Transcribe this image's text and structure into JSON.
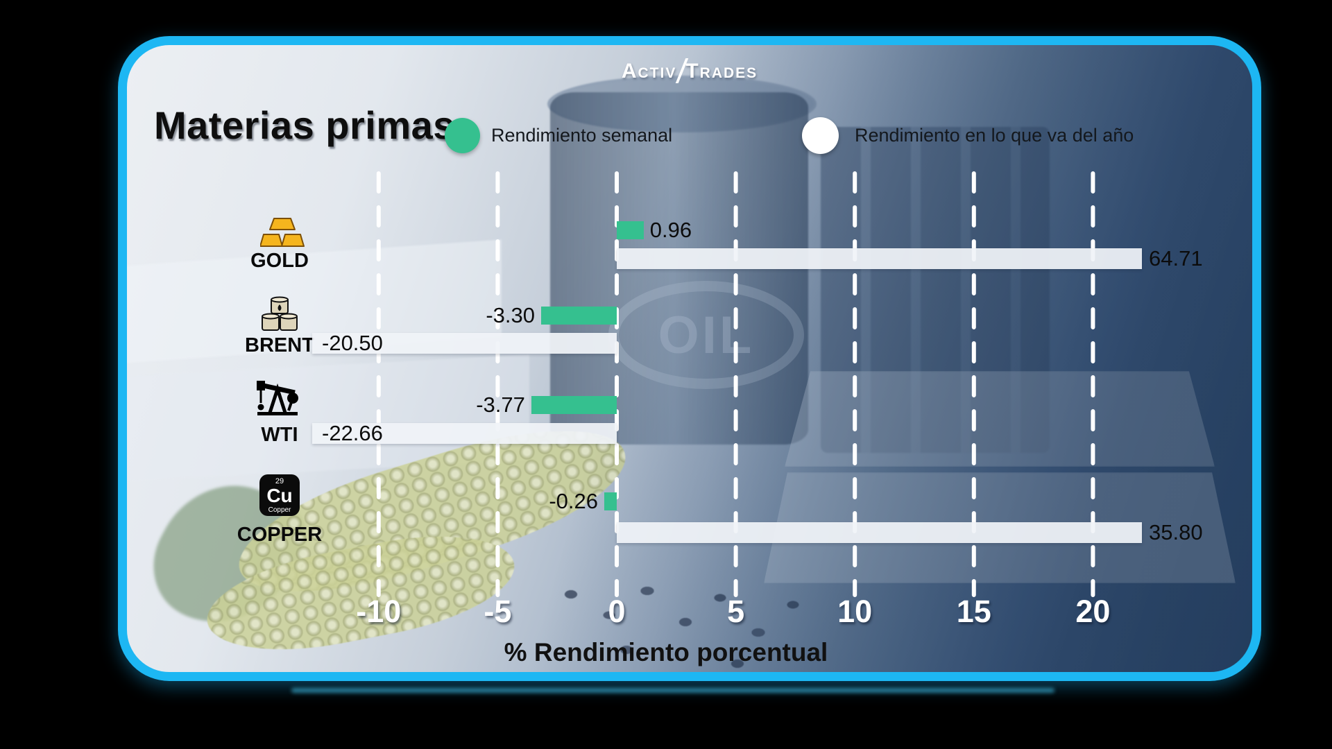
{
  "brand": {
    "logo_part1": "Activ",
    "logo_part2": "Trades"
  },
  "header": {
    "title": "Materias primas"
  },
  "legend": [
    {
      "label": "Rendimiento semanal",
      "color": "#35c08f"
    },
    {
      "label": "Rendimiento en lo que va del año",
      "color": "#ffffff"
    }
  ],
  "chart_data": {
    "type": "bar",
    "orientation": "horizontal",
    "title": "Materias primas",
    "categories": [
      "GOLD",
      "BRENT",
      "WTI",
      "COPPER"
    ],
    "series": [
      {
        "name": "Rendimiento semanal",
        "color": "#35c08f",
        "values": [
          0.96,
          -3.3,
          -3.77,
          -0.26
        ],
        "labels": [
          "0.96",
          "-3.30",
          "-3.77",
          "-0.26"
        ]
      },
      {
        "name": "Rendimiento en lo que va del año",
        "color": "#f0f3f7",
        "values": [
          64.71,
          -20.5,
          -22.66,
          35.8
        ],
        "labels": [
          "64.71",
          "-20.50",
          "-22.66",
          "35.80"
        ]
      }
    ],
    "xlabel": "% Rendimiento porcentual",
    "x_ticks": [
      -10,
      -5,
      0,
      5,
      10,
      15,
      20
    ],
    "x_axis_visible_range": [
      -12.8,
      22.1
    ],
    "bars_clipped_to_range": true,
    "grid": "vertical-dashed-white",
    "legend_position": "top"
  },
  "axis": {
    "label": "% Rendimiento porcentual",
    "ticks": [
      "-10",
      "-5",
      "0",
      "5",
      "10",
      "15",
      "20"
    ]
  },
  "copper_tile": {
    "atomic_number": "29",
    "symbol": "Cu",
    "element_name": "Copper"
  },
  "colors": {
    "border": "#1db7f3",
    "weekly_bar": "#35c08f",
    "ytd_bar": "#f0f3f7",
    "background_outside": "#000000"
  }
}
